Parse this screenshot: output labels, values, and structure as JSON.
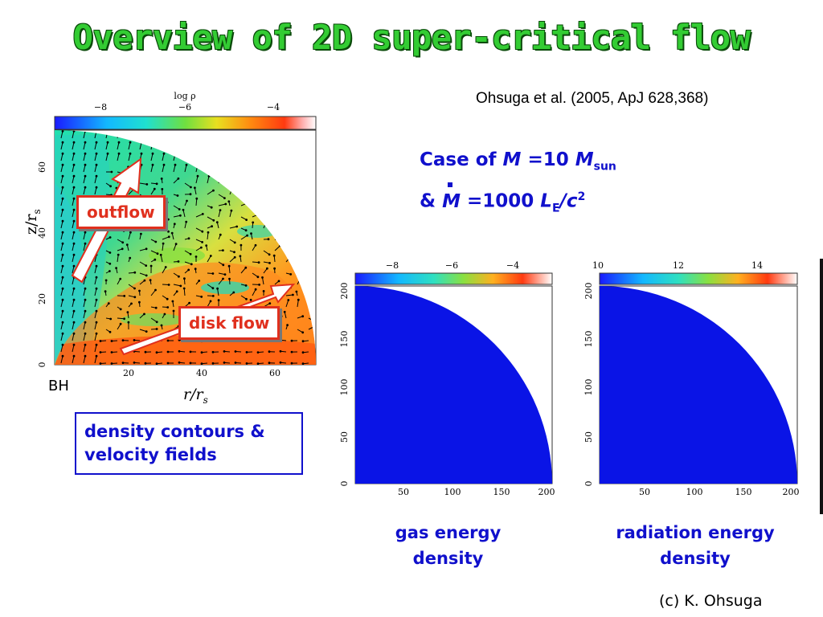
{
  "title": "Overview of 2D super-critical flow",
  "reference": "Ohsuga et al. (2005, ApJ 628,368)",
  "case": {
    "line1": {
      "prefix": "Case of",
      "var": "M",
      "eq": "=10",
      "var2": "M",
      "sub": "sun"
    },
    "line2": {
      "prefix": "&",
      "var": "M",
      "eq": "=1000",
      "var2": "L",
      "sub": "E",
      "suffix": "/c",
      "sup": "2"
    }
  },
  "left_plot": {
    "colorbar_label": "log ρ",
    "colorbar_ticks": [
      "−8",
      "−6",
      "−4"
    ],
    "y_ticks": [
      "0",
      "20",
      "40",
      "60"
    ],
    "x_ticks": [
      "20",
      "40",
      "60"
    ],
    "ylabel": "z/r",
    "ylabel_sub": "s",
    "xlabel": "r/r",
    "xlabel_sub": "s",
    "bh_label": "BH",
    "outflow_label": "outflow",
    "disk_label": "disk flow"
  },
  "left_caption": [
    "density contours &",
    "velocity fields"
  ],
  "mid_plot": {
    "colorbar_ticks": [
      "−8",
      "−6",
      "−4"
    ],
    "y_ticks": [
      "0",
      "50",
      "100",
      "150",
      "200"
    ],
    "x_ticks": [
      "50",
      "100",
      "150",
      "200"
    ]
  },
  "right_plot": {
    "colorbar_ticks": [
      "10",
      "12",
      "14"
    ],
    "y_ticks": [
      "0",
      "50",
      "100",
      "150",
      "200"
    ],
    "x_ticks": [
      "50",
      "100",
      "150",
      "200"
    ]
  },
  "mid_caption": [
    "gas energy",
    "density"
  ],
  "right_caption": [
    "radiation energy",
    "density"
  ],
  "credit": "(c)  K. Ohsuga",
  "colors": {
    "title": "#33cc33",
    "accent_blue": "#1010cc",
    "callout_red": "#e0301e",
    "field_blue": "#0a14e6"
  }
}
